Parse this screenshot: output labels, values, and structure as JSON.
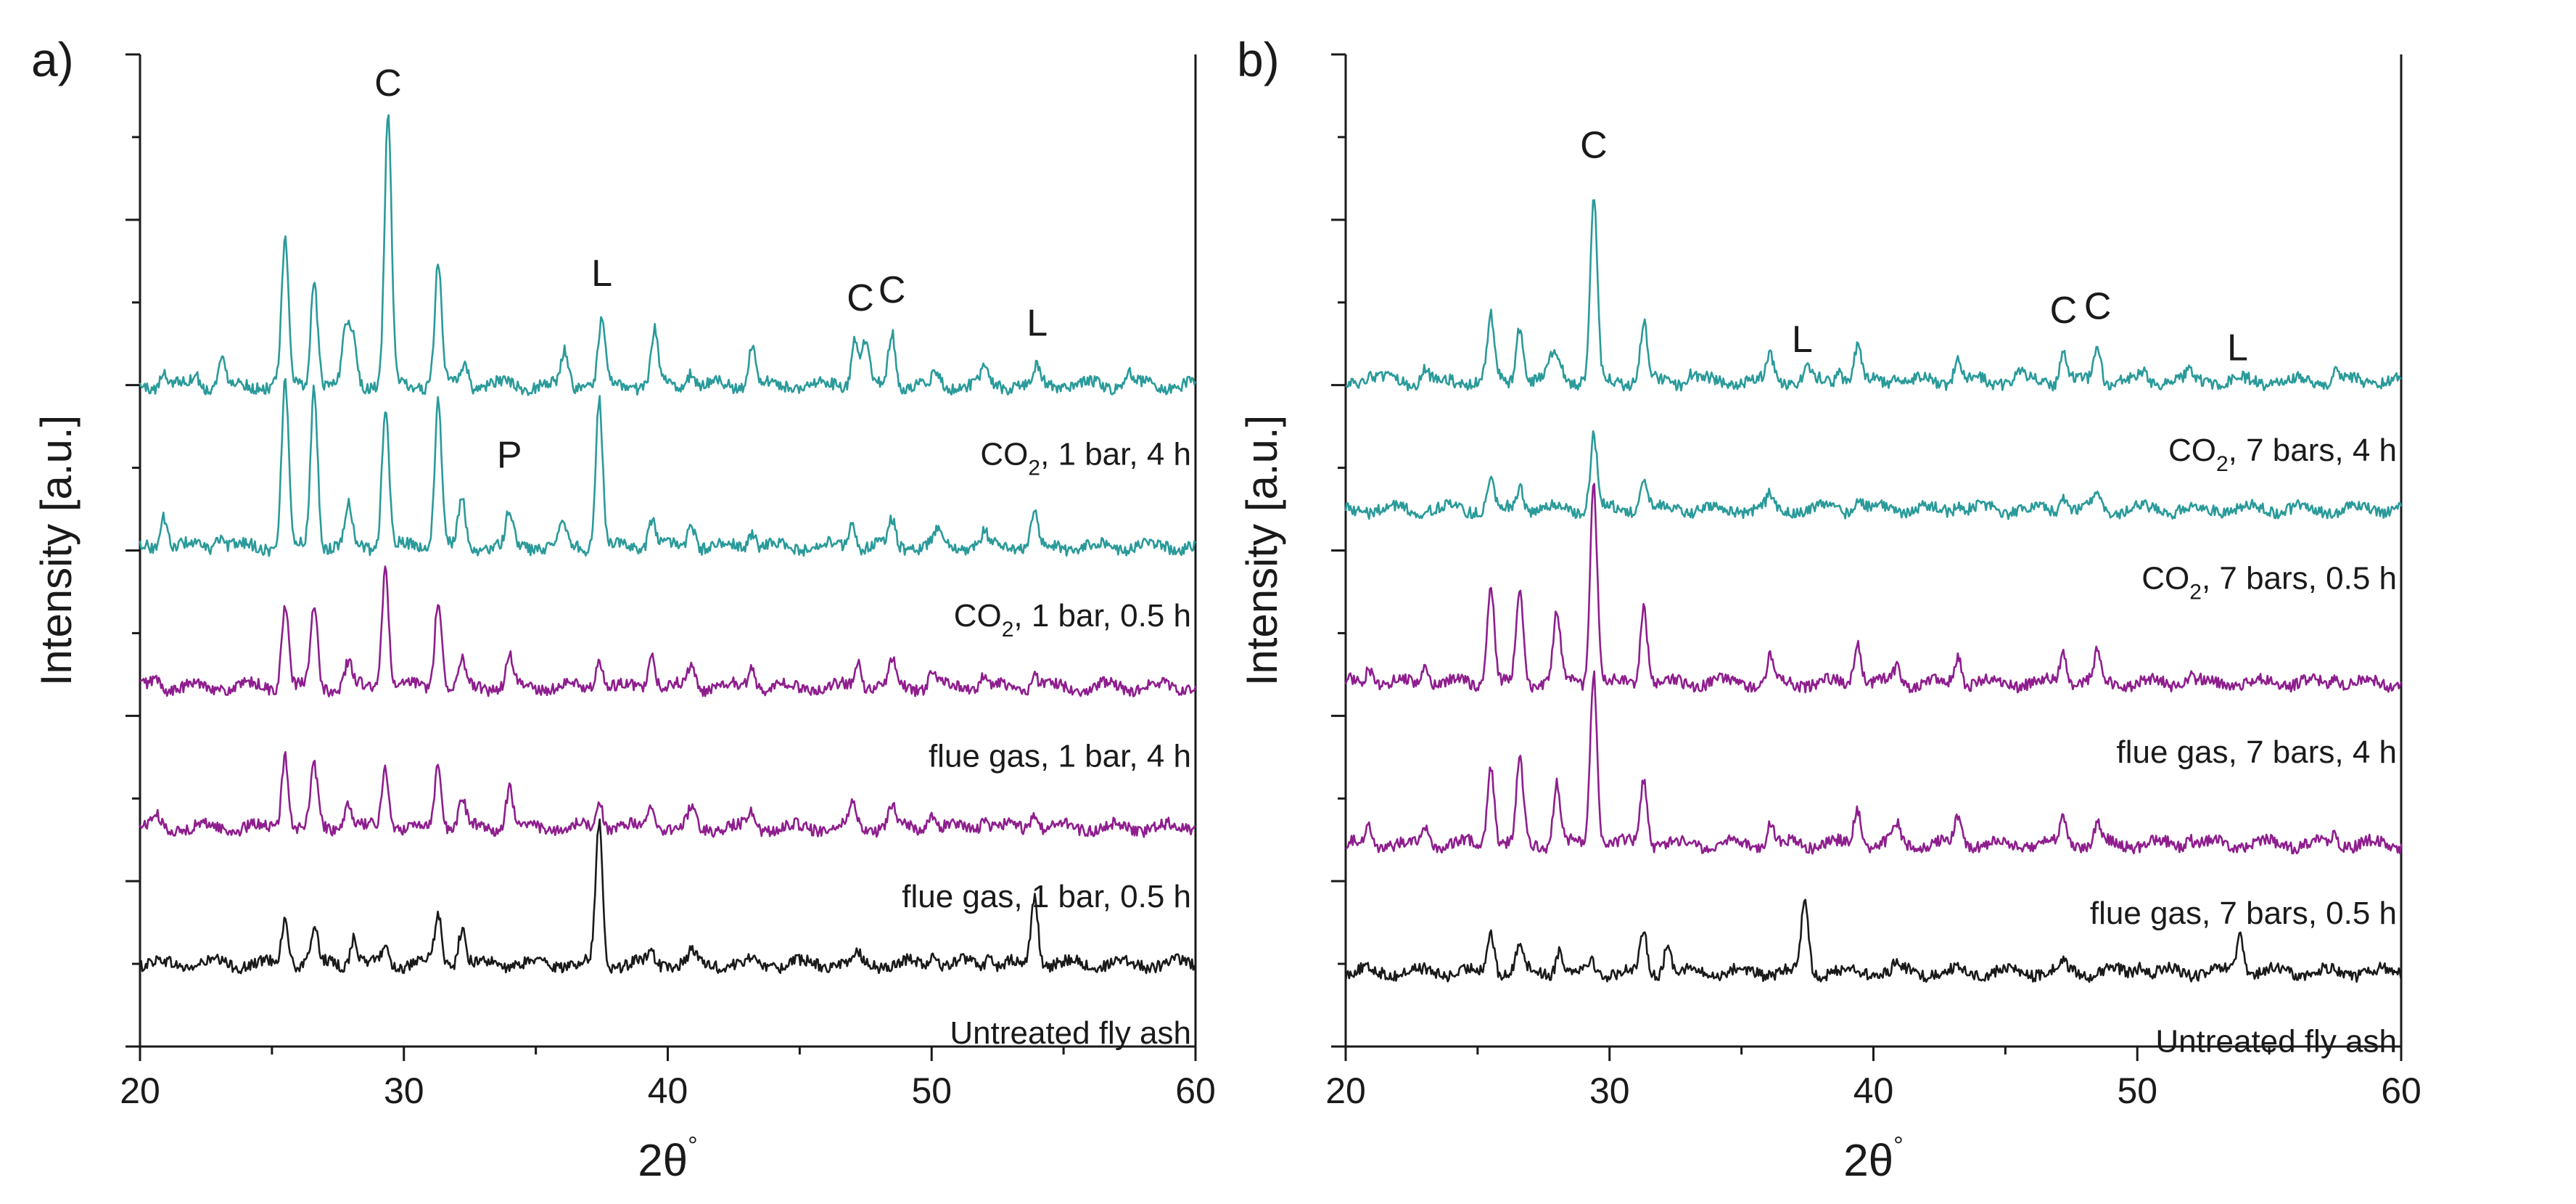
{
  "chart_data": [
    {
      "type": "line",
      "panel_label": "a)",
      "title": "",
      "xlabel": "2θ",
      "xlabel_suffix": "°",
      "ylabel": "Intensity [a.u.]",
      "xlim": [
        20,
        60
      ],
      "xticks": [
        20,
        30,
        40,
        50,
        60
      ],
      "yticks_labeled": false,
      "series": [
        {
          "name": "Untreated fly ash",
          "color": "#1a1a1a",
          "baseline": 1.0,
          "label_lines": [
            "Untreated fly ash"
          ],
          "peaks": [
            [
              25.5,
              0.55
            ],
            [
              26.6,
              0.42
            ],
            [
              28.1,
              0.35
            ],
            [
              29.3,
              0.2
            ],
            [
              31.3,
              0.58
            ],
            [
              32.2,
              0.45
            ],
            [
              37.4,
              1.7
            ],
            [
              39.4,
              0.1
            ],
            [
              40.9,
              0.12
            ],
            [
              47.2,
              0.12
            ],
            [
              50.1,
              0.14
            ],
            [
              52.2,
              0.12
            ],
            [
              53.9,
              0.85
            ]
          ]
        },
        {
          "name": "flue gas, 1 bar, 0.5 h",
          "color": "#8e1e8e",
          "baseline": 2.65,
          "label_lines": [
            "flue gas, 1 bar, 0.5 h"
          ],
          "peaks": [
            [
              20.6,
              0.12
            ],
            [
              25.5,
              0.9
            ],
            [
              26.6,
              0.7
            ],
            [
              27.9,
              0.3
            ],
            [
              29.3,
              0.75
            ],
            [
              31.3,
              0.8
            ],
            [
              32.2,
              0.35
            ],
            [
              34.0,
              0.5
            ],
            [
              37.4,
              0.35
            ],
            [
              39.4,
              0.28
            ],
            [
              40.9,
              0.22
            ],
            [
              43.2,
              0.2
            ],
            [
              47.0,
              0.3
            ],
            [
              48.5,
              0.25
            ],
            [
              50.0,
              0.2
            ],
            [
              52.0,
              0.15
            ],
            [
              53.9,
              0.18
            ]
          ]
        },
        {
          "name": "flue gas, 1 bar, 4 h",
          "color": "#8e1e8e",
          "baseline": 4.35,
          "label_lines": [
            "flue gas, 1 bar, 4 h"
          ],
          "peaks": [
            [
              20.6,
              0.1
            ],
            [
              25.5,
              1.0
            ],
            [
              26.6,
              0.95
            ],
            [
              27.9,
              0.3
            ],
            [
              29.3,
              1.45
            ],
            [
              31.3,
              1.1
            ],
            [
              32.2,
              0.3
            ],
            [
              34.0,
              0.35
            ],
            [
              37.4,
              0.35
            ],
            [
              39.4,
              0.4
            ],
            [
              40.9,
              0.25
            ],
            [
              43.2,
              0.25
            ],
            [
              47.2,
              0.35
            ],
            [
              48.5,
              0.3
            ],
            [
              50.0,
              0.18
            ],
            [
              52.0,
              0.15
            ],
            [
              53.9,
              0.15
            ]
          ]
        },
        {
          "name": "CO2, 1 bar, 0.5 h",
          "color": "#2a9a9a",
          "baseline": 6.05,
          "label_lines": [
            "CO2, 1 bar, 0.5 h"
          ],
          "peaks": [
            [
              20.9,
              0.4
            ],
            [
              23.0,
              0.15
            ],
            [
              25.5,
              2.0
            ],
            [
              26.6,
              1.95
            ],
            [
              27.9,
              0.5
            ],
            [
              29.3,
              1.7
            ],
            [
              31.3,
              1.8
            ],
            [
              32.2,
              0.55
            ],
            [
              34.0,
              0.4
            ],
            [
              36.0,
              0.3
            ],
            [
              37.4,
              1.8
            ],
            [
              39.4,
              0.35
            ],
            [
              40.9,
              0.3
            ],
            [
              43.2,
              0.2
            ],
            [
              47.0,
              0.3
            ],
            [
              48.5,
              0.3
            ],
            [
              50.2,
              0.15
            ],
            [
              52.0,
              0.15
            ],
            [
              53.9,
              0.4
            ]
          ]
        },
        {
          "name": "CO2, 1 bar, 4 h",
          "color": "#2a9a9a",
          "baseline": 8.0,
          "label_lines": [
            "CO2, 1 bar, 4 h"
          ],
          "peaks": [
            [
              20.9,
              0.15
            ],
            [
              22.1,
              0.15
            ],
            [
              23.1,
              0.3
            ],
            [
              25.5,
              1.7
            ],
            [
              26.6,
              1.3
            ],
            [
              27.8,
              0.7
            ],
            [
              28.1,
              0.6
            ],
            [
              29.4,
              3.25
            ],
            [
              31.3,
              1.45
            ],
            [
              32.3,
              0.3
            ],
            [
              36.1,
              0.4
            ],
            [
              37.5,
              0.75
            ],
            [
              39.5,
              0.65
            ],
            [
              40.9,
              0.2
            ],
            [
              43.2,
              0.5
            ],
            [
              47.1,
              0.6
            ],
            [
              47.5,
              0.55
            ],
            [
              48.5,
              0.65
            ],
            [
              50.2,
              0.15
            ],
            [
              52.0,
              0.2
            ],
            [
              54.0,
              0.2
            ],
            [
              57.5,
              0.15
            ]
          ]
        }
      ],
      "annotations": [
        {
          "text": "C",
          "x": 29.4,
          "y": 11.5
        },
        {
          "text": "L",
          "x": 37.5,
          "y": 9.2
        },
        {
          "text": "C",
          "x": 47.3,
          "y": 8.9
        },
        {
          "text": "C",
          "x": 48.5,
          "y": 9.0
        },
        {
          "text": "L",
          "x": 54.0,
          "y": 8.6
        },
        {
          "text": "P",
          "x": 34.0,
          "y": 7.0
        }
      ]
    },
    {
      "type": "line",
      "panel_label": "b)",
      "title": "",
      "xlabel": "2θ",
      "xlabel_suffix": "°",
      "ylabel": "Intensity [a.u.]",
      "xlim": [
        20,
        60
      ],
      "xticks": [
        20,
        30,
        40,
        50,
        60
      ],
      "yticks_labeled": false,
      "series": [
        {
          "name": "Untreated fly ash",
          "color": "#1a1a1a",
          "baseline": 0.9,
          "label_lines": [
            "Untreated fly ash"
          ],
          "peaks": [
            [
              25.5,
              0.5
            ],
            [
              26.6,
              0.35
            ],
            [
              28.1,
              0.3
            ],
            [
              29.3,
              0.15
            ],
            [
              31.3,
              0.45
            ],
            [
              32.2,
              0.35
            ],
            [
              37.4,
              0.9
            ],
            [
              40.9,
              0.1
            ],
            [
              47.2,
              0.1
            ],
            [
              50.1,
              0.1
            ],
            [
              53.9,
              0.45
            ]
          ]
        },
        {
          "name": "flue gas, 7 bars, 0.5 h",
          "color": "#8e1e8e",
          "baseline": 2.45,
          "label_lines": [
            "flue gas, 7 bars, 0.5 h"
          ],
          "peaks": [
            [
              20.9,
              0.2
            ],
            [
              23.0,
              0.2
            ],
            [
              25.5,
              1.0
            ],
            [
              26.6,
              1.0
            ],
            [
              28.0,
              0.75
            ],
            [
              29.4,
              2.1
            ],
            [
              31.3,
              0.8
            ],
            [
              36.1,
              0.25
            ],
            [
              39.4,
              0.45
            ],
            [
              40.9,
              0.2
            ],
            [
              43.2,
              0.3
            ],
            [
              47.2,
              0.3
            ],
            [
              48.5,
              0.25
            ],
            [
              52.0,
              0.1
            ],
            [
              57.5,
              0.1
            ]
          ]
        },
        {
          "name": "flue gas, 7 bars, 4 h",
          "color": "#8e1e8e",
          "baseline": 4.4,
          "label_lines": [
            "flue gas, 7 bars, 4 h"
          ],
          "peaks": [
            [
              20.9,
              0.2
            ],
            [
              23.0,
              0.2
            ],
            [
              25.5,
              1.2
            ],
            [
              26.6,
              1.15
            ],
            [
              28.0,
              0.85
            ],
            [
              29.4,
              2.45
            ],
            [
              31.3,
              0.95
            ],
            [
              36.1,
              0.3
            ],
            [
              39.4,
              0.55
            ],
            [
              40.9,
              0.2
            ],
            [
              43.2,
              0.35
            ],
            [
              47.2,
              0.4
            ],
            [
              48.5,
              0.35
            ],
            [
              52.0,
              0.1
            ],
            [
              57.5,
              0.12
            ]
          ]
        },
        {
          "name": "CO2, 7 bars, 0.5 h",
          "color": "#2a9a9a",
          "baseline": 6.5,
          "label_lines": [
            "CO2, 7 bars, 0.5 h"
          ],
          "peaks": [
            [
              25.5,
              0.35
            ],
            [
              26.6,
              0.3
            ],
            [
              29.4,
              0.9
            ],
            [
              31.3,
              0.35
            ],
            [
              36.1,
              0.15
            ],
            [
              39.4,
              0.15
            ],
            [
              43.2,
              0.1
            ],
            [
              47.2,
              0.2
            ],
            [
              48.5,
              0.2
            ]
          ]
        },
        {
          "name": "CO2, 7 bars, 4 h",
          "color": "#2a9a9a",
          "baseline": 8.05,
          "label_lines": [
            "CO2, 7 bars, 4 h"
          ],
          "peaks": [
            [
              20.9,
              0.1
            ],
            [
              23.0,
              0.15
            ],
            [
              25.5,
              0.75
            ],
            [
              26.6,
              0.7
            ],
            [
              27.8,
              0.3
            ],
            [
              28.1,
              0.25
            ],
            [
              29.4,
              2.2
            ],
            [
              31.3,
              0.7
            ],
            [
              33.1,
              0.1
            ],
            [
              36.1,
              0.3
            ],
            [
              37.5,
              0.15
            ],
            [
              38.7,
              0.15
            ],
            [
              39.4,
              0.4
            ],
            [
              40.9,
              0.1
            ],
            [
              43.2,
              0.3
            ],
            [
              45.5,
              0.1
            ],
            [
              47.2,
              0.35
            ],
            [
              48.5,
              0.45
            ],
            [
              50.2,
              0.1
            ],
            [
              52.0,
              0.1
            ],
            [
              57.5,
              0.1
            ]
          ]
        }
      ],
      "annotations": [
        {
          "text": "C",
          "x": 29.4,
          "y": 10.75
        },
        {
          "text": "L",
          "x": 37.3,
          "y": 8.4
        },
        {
          "text": "C",
          "x": 47.2,
          "y": 8.75
        },
        {
          "text": "C",
          "x": 48.5,
          "y": 8.8
        },
        {
          "text": "L",
          "x": 53.8,
          "y": 8.3
        }
      ]
    }
  ]
}
